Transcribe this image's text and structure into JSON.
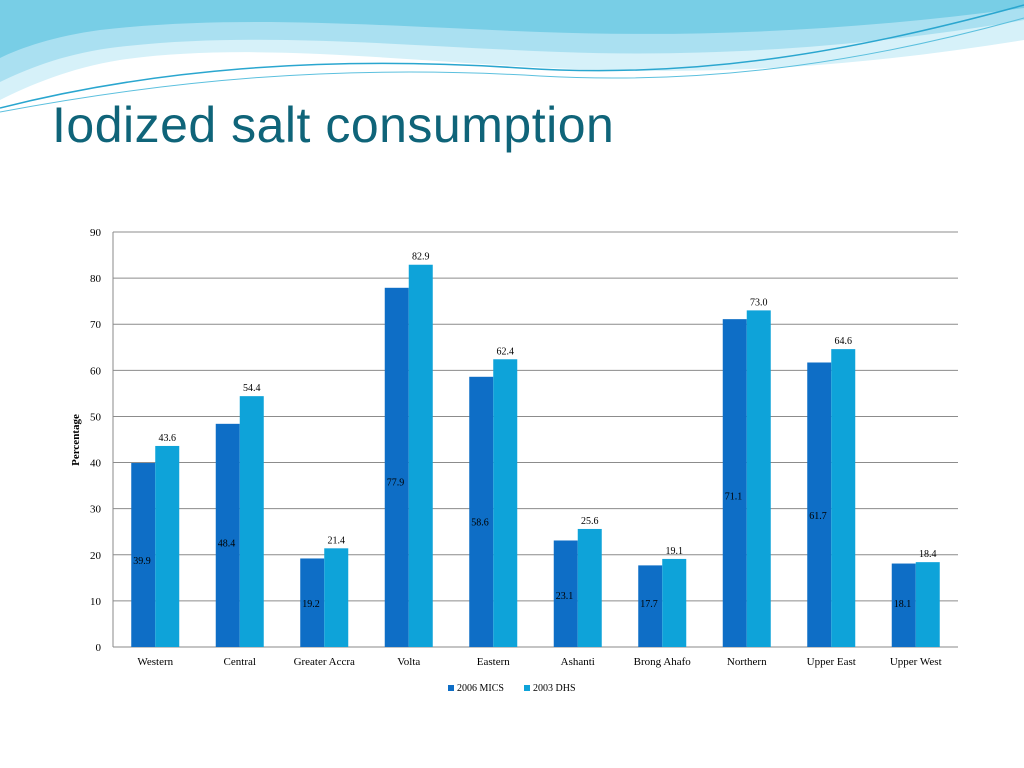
{
  "slide": {
    "title": "Iodized salt consumption"
  },
  "colors": {
    "title": "#0f6479",
    "series_2006": "#0e6ec6",
    "series_2003": "#0ea3d9",
    "wave_light": "#cdeef8",
    "wave_dark": "#38b4d6"
  },
  "chart_data": {
    "type": "bar",
    "title": "",
    "xlabel": "",
    "ylabel": "Percentage",
    "ylim": [
      0,
      90
    ],
    "yticks": [
      0,
      10,
      20,
      30,
      40,
      50,
      60,
      70,
      80,
      90
    ],
    "grid": true,
    "legend_position": "bottom",
    "categories": [
      "Western",
      "Central",
      "Greater Accra",
      "Volta",
      "Eastern",
      "Ashanti",
      "Brong Ahafo",
      "Northern",
      "Upper East",
      "Upper West"
    ],
    "series": [
      {
        "name": "2006 MICS",
        "values": [
          39.9,
          48.4,
          19.2,
          77.9,
          58.6,
          23.1,
          17.7,
          71.1,
          61.7,
          18.1
        ]
      },
      {
        "name": "2003 DHS",
        "values": [
          43.6,
          54.4,
          21.4,
          82.9,
          62.4,
          25.6,
          19.1,
          73.0,
          64.6,
          18.4
        ]
      }
    ],
    "labels_2006": [
      "39.9",
      "48.4",
      "19.2",
      "77.9",
      "58.6",
      "23.1",
      "17.7",
      "71.1",
      "61.7",
      "18.1"
    ],
    "labels_2003": [
      "43.6",
      "54.4",
      "21.4",
      "82.9",
      "62.4",
      "25.6",
      "19.1",
      "73.0",
      "64.6",
      "18.4"
    ]
  }
}
